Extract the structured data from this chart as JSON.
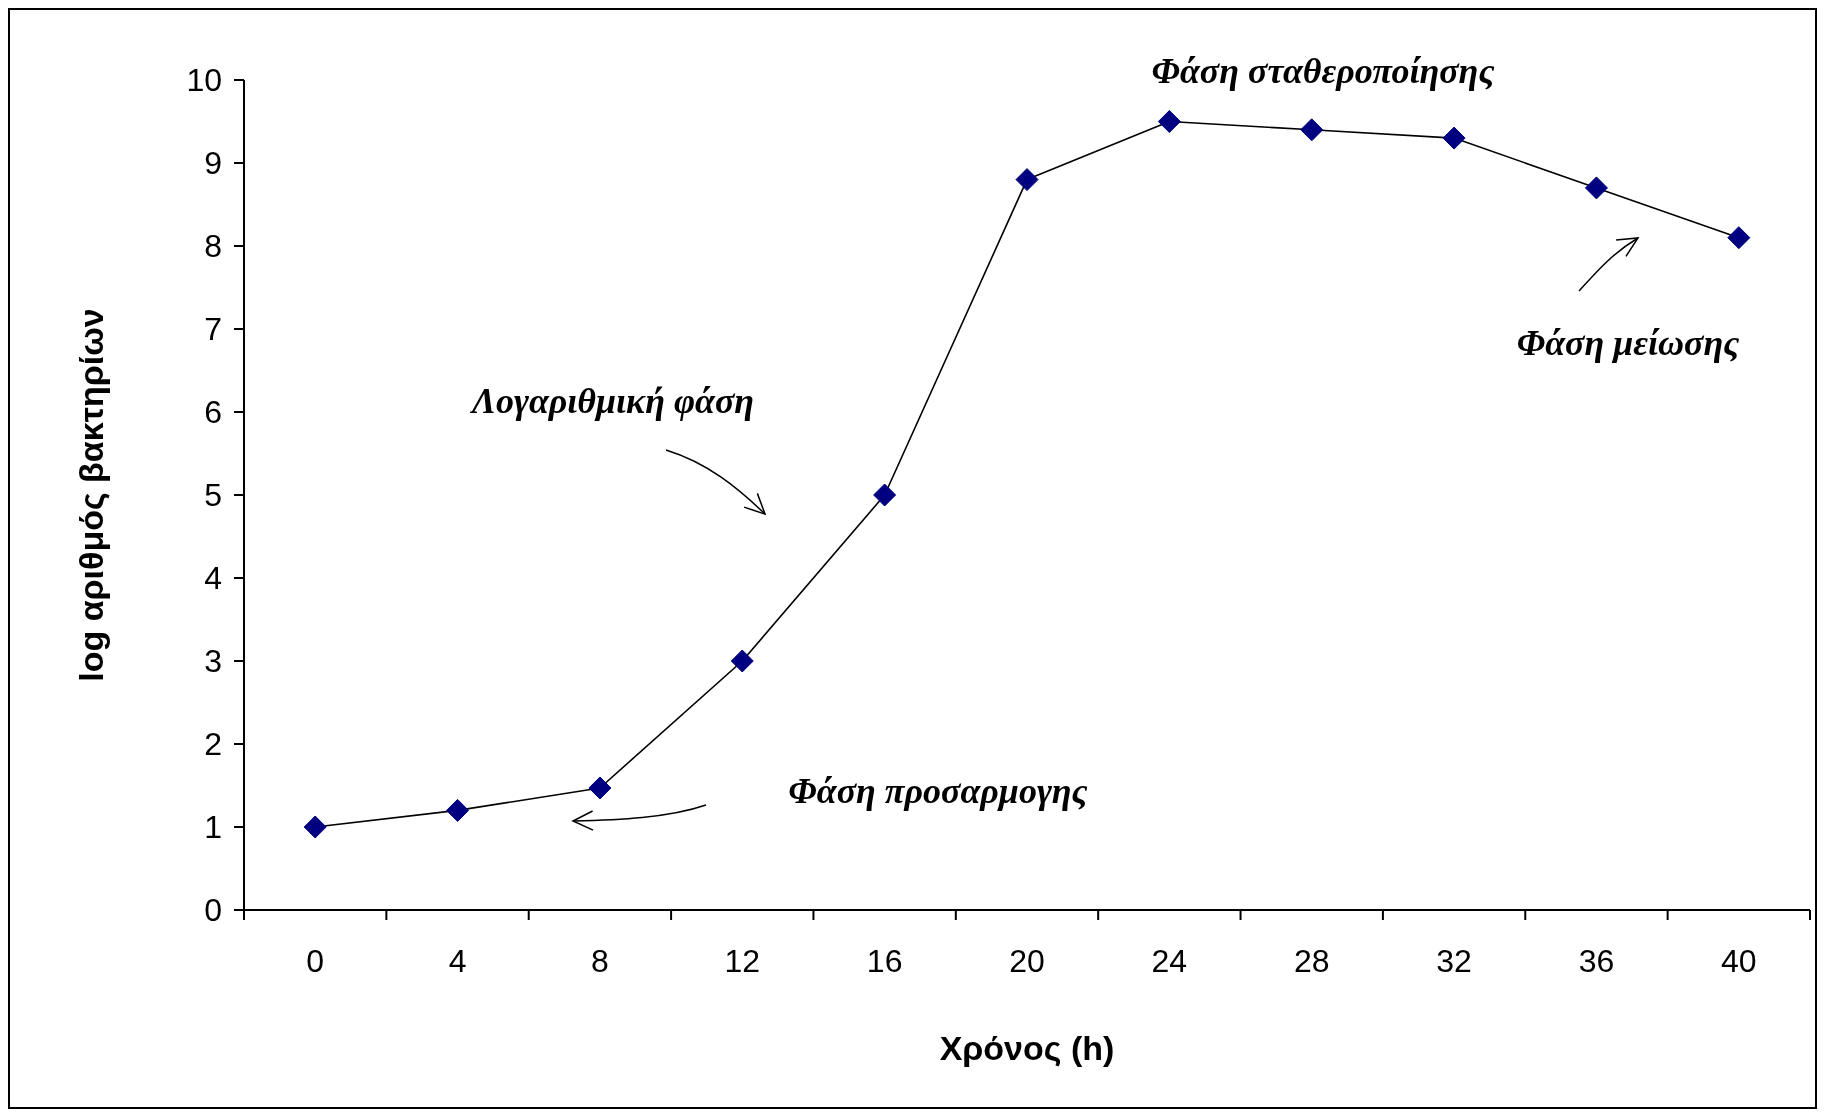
{
  "chart_data": {
    "type": "line",
    "xlabel": "Χρόνος (h)",
    "ylabel": "log αριθμός βακτηρίων",
    "categories": [
      "0",
      "4",
      "8",
      "12",
      "16",
      "20",
      "24",
      "28",
      "32",
      "36",
      "40"
    ],
    "series": [
      {
        "color": "#000080",
        "values": [
          1.0,
          1.2,
          1.47,
          3.0,
          5.0,
          8.8,
          9.5,
          9.4,
          9.3,
          8.7,
          8.1
        ]
      }
    ],
    "ylim": [
      0,
      10
    ],
    "yticks": [
      0,
      1,
      2,
      3,
      4,
      5,
      6,
      7,
      8,
      9,
      10
    ],
    "marker": "diamond",
    "line_style": "solid",
    "grid": false,
    "annotations": [
      "Φάση σταθεροποίησης",
      "Λογαριθμική φάση",
      "Φάση προσαρμογης",
      "Φάση μείωσης"
    ]
  }
}
